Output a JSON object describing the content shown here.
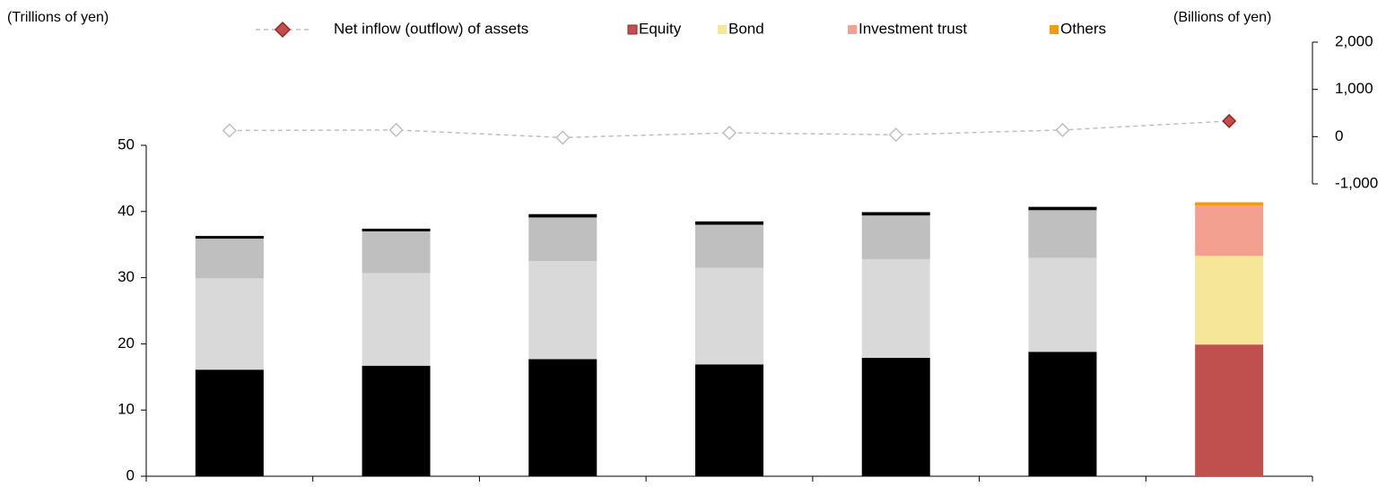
{
  "chart_data": {
    "type": "bar",
    "y_axis_label": "(Trillions of yen)",
    "y2_axis_label": "(Billions of yen)",
    "categories": [
      null,
      null,
      null,
      null,
      null,
      null,
      null
    ],
    "ylim": [
      0,
      50
    ],
    "yticks": [
      0,
      10,
      20,
      30,
      40,
      50
    ],
    "y2lim": [
      -1000,
      2000
    ],
    "y2ticks": [
      {
        "value": -1000,
        "label": "-1,000"
      },
      0,
      {
        "value": 1000,
        "label": "1,000"
      },
      {
        "value": 2000,
        "label": "2,000"
      }
    ],
    "series": [
      {
        "name": "Net inflow (outflow) of assets",
        "type": "line",
        "axis": "y2",
        "color": "#bfbfbf",
        "colors": [
          "#ffffff",
          "#ffffff",
          "#ffffff",
          "#ffffff",
          "#ffffff",
          "#ffffff",
          "#c0504d"
        ],
        "values": [
          130,
          140,
          -20,
          80,
          40,
          140,
          330
        ]
      },
      {
        "name": "Equity",
        "color": "#c0504d",
        "colors": [
          "#000000",
          "#000000",
          "#000000",
          "#000000",
          "#000000",
          "#000000",
          "#c0504d"
        ],
        "values": [
          16.1,
          16.7,
          17.7,
          16.9,
          17.9,
          18.8,
          19.9
        ]
      },
      {
        "name": "Bond",
        "color": "#f5e797",
        "colors": [
          "#d9d9d9",
          "#d9d9d9",
          "#d9d9d9",
          "#d9d9d9",
          "#d9d9d9",
          "#d9d9d9",
          "#f5e797"
        ],
        "values": [
          13.8,
          14.0,
          14.8,
          14.6,
          14.9,
          14.2,
          13.4
        ]
      },
      {
        "name": "Investment trust",
        "color": "#f4a090",
        "colors": [
          "#bfbfbf",
          "#bfbfbf",
          "#bfbfbf",
          "#bfbfbf",
          "#bfbfbf",
          "#bfbfbf",
          "#f4a090"
        ],
        "values": [
          6.0,
          6.3,
          6.6,
          6.5,
          6.6,
          7.2,
          7.6
        ]
      },
      {
        "name": "Others",
        "color": "#f39c12",
        "colors": [
          "#000000",
          "#000000",
          "#000000",
          "#000000",
          "#000000",
          "#000000",
          "#f39c12"
        ],
        "values": [
          0.4,
          0.4,
          0.5,
          0.5,
          0.5,
          0.5,
          0.5
        ]
      }
    ]
  }
}
